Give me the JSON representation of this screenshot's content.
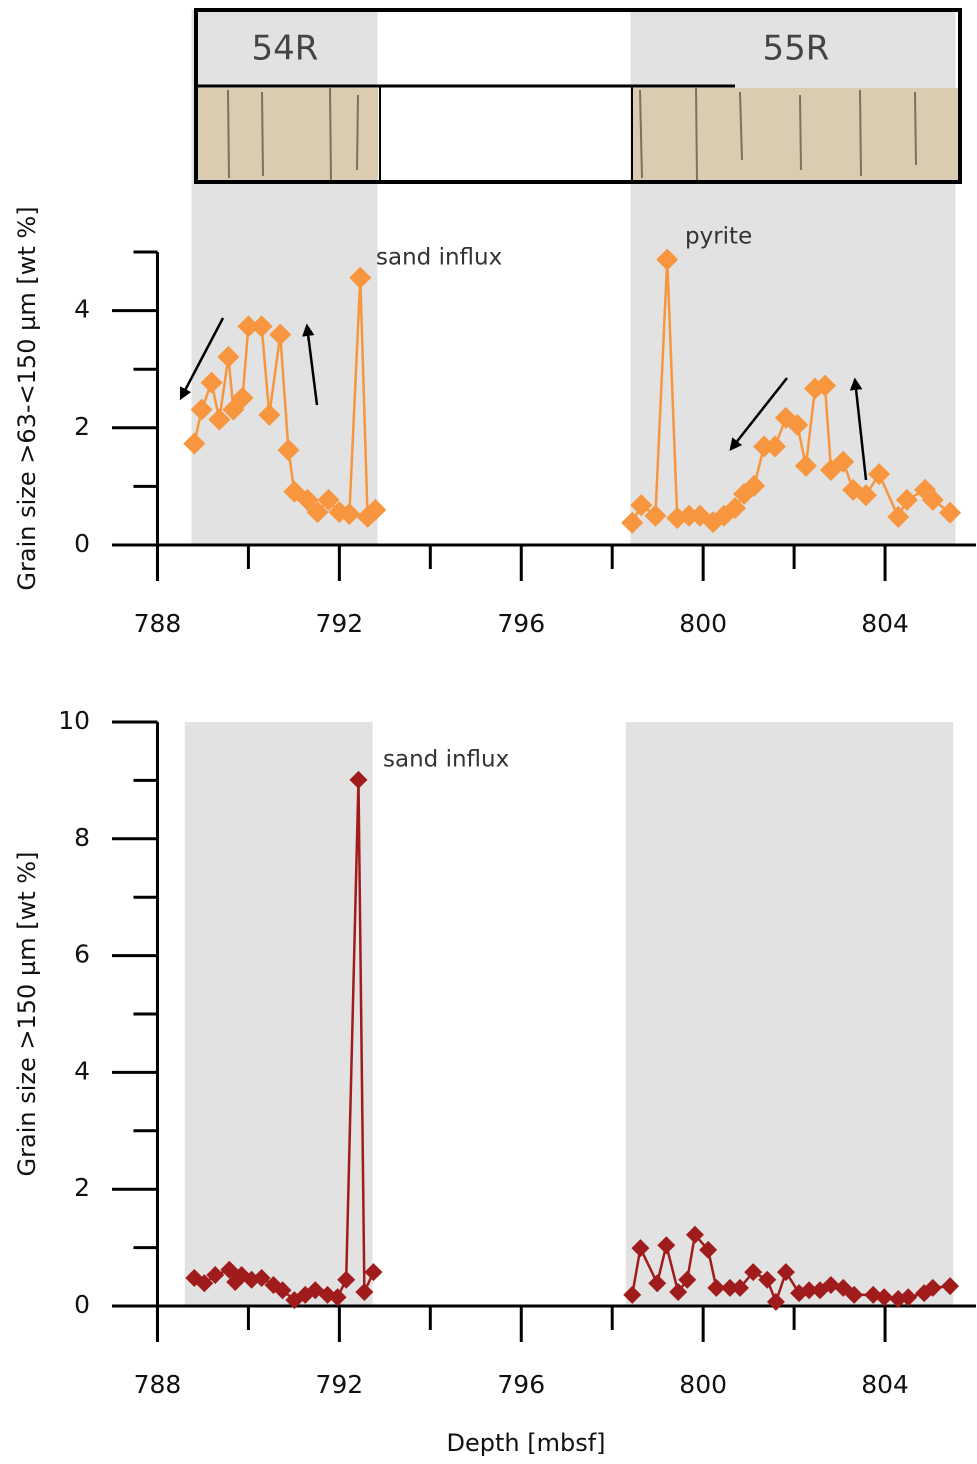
{
  "core_labels": [
    "54R",
    "55R"
  ],
  "chart_data": [
    {
      "type": "line",
      "ylabel": "Grain size >63-<150 µm [wt %]",
      "xlim": [
        787,
        806
      ],
      "xticks": [
        788,
        792,
        796,
        800,
        804
      ],
      "xminorticks": [
        790,
        794,
        798,
        802
      ],
      "ylim": [
        0,
        5
      ],
      "yticks": [
        0,
        2,
        4
      ],
      "yminorticks": [
        1,
        3,
        5
      ],
      "shaded": [
        [
          788.75,
          792.84
        ],
        [
          798.4,
          805.55
        ]
      ],
      "annotations": [
        "sand influx",
        "pyrite"
      ],
      "series": [
        {
          "color": "#f7963e",
          "x": [
            788.81,
            788.97,
            789.19,
            789.36,
            789.56,
            789.67,
            789.87,
            790.0,
            790.29,
            790.46,
            790.7,
            790.88,
            791.01,
            791.3,
            791.52,
            791.76,
            792.0,
            792.22,
            792.46,
            792.62,
            792.79
          ],
          "values": [
            1.73,
            2.31,
            2.77,
            2.14,
            3.21,
            2.31,
            2.51,
            3.73,
            3.73,
            2.22,
            3.59,
            1.62,
            0.91,
            0.77,
            0.56,
            0.77,
            0.56,
            0.53,
            4.56,
            0.48,
            0.6
          ]
        },
        {
          "color": "#f7963e",
          "x": [
            798.44,
            798.64,
            798.95,
            799.21,
            799.43,
            799.69,
            799.93,
            800.22,
            800.46,
            800.7,
            800.9,
            801.12,
            801.34,
            801.58,
            801.82,
            802.07,
            802.26,
            802.46,
            802.68,
            802.81,
            803.08,
            803.3,
            803.58,
            803.87,
            804.29,
            804.48,
            804.88,
            805.05,
            805.43
          ],
          "values": [
            0.38,
            0.68,
            0.5,
            4.87,
            0.46,
            0.5,
            0.5,
            0.39,
            0.5,
            0.63,
            0.87,
            1.01,
            1.68,
            1.68,
            2.17,
            2.05,
            1.35,
            2.67,
            2.72,
            1.28,
            1.42,
            0.94,
            0.85,
            1.21,
            0.48,
            0.77,
            0.94,
            0.77,
            0.55
          ]
        }
      ]
    },
    {
      "type": "line",
      "ylabel": "Grain size >150 µm [wt %]",
      "xlabel": "Depth [mbsf]",
      "xlim": [
        787,
        806
      ],
      "xticks": [
        788,
        792,
        796,
        800,
        804
      ],
      "xminorticks": [
        790,
        794,
        798,
        802
      ],
      "ylim": [
        0,
        10
      ],
      "yticks": [
        0,
        2,
        4,
        6,
        8,
        10
      ],
      "yminorticks": [
        1,
        3,
        5,
        7,
        9
      ],
      "shaded": [
        [
          788.6,
          792.73
        ],
        [
          798.3,
          805.5
        ]
      ],
      "annotations": [
        "sand influx"
      ],
      "series": [
        {
          "color": "#a01c1c",
          "x": [
            788.81,
            789.03,
            789.27,
            789.58,
            789.71,
            789.85,
            790.07,
            790.29,
            790.55,
            790.75,
            791.01,
            791.25,
            791.47,
            791.74,
            791.96,
            792.15,
            792.42,
            792.55,
            792.75
          ],
          "values": [
            0.48,
            0.39,
            0.53,
            0.62,
            0.41,
            0.53,
            0.45,
            0.48,
            0.36,
            0.27,
            0.1,
            0.19,
            0.27,
            0.19,
            0.15,
            0.45,
            9.01,
            0.24,
            0.58
          ]
        },
        {
          "color": "#a01c1c",
          "x": [
            798.44,
            798.62,
            798.99,
            799.19,
            799.45,
            799.65,
            799.82,
            800.11,
            800.29,
            800.59,
            800.81,
            801.1,
            801.41,
            801.6,
            801.82,
            802.11,
            802.33,
            802.57,
            802.81,
            803.08,
            803.32,
            803.74,
            803.98,
            804.29,
            804.51,
            804.86,
            805.05,
            805.43
          ],
          "values": [
            0.19,
            0.99,
            0.39,
            1.04,
            0.24,
            0.45,
            1.22,
            0.96,
            0.31,
            0.31,
            0.31,
            0.58,
            0.45,
            0.07,
            0.58,
            0.22,
            0.27,
            0.27,
            0.36,
            0.31,
            0.19,
            0.19,
            0.15,
            0.12,
            0.15,
            0.22,
            0.31,
            0.34
          ]
        }
      ]
    }
  ]
}
